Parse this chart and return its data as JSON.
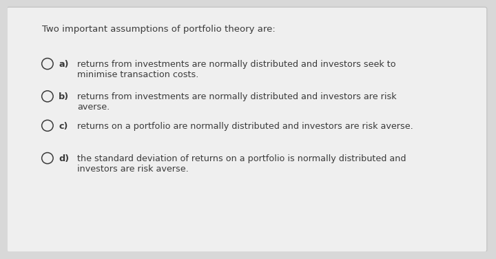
{
  "title": "Two important assumptions of portfolio theory are:",
  "bg_color": "#d8d8d8",
  "card_color": "#efefef",
  "text_color": "#3a3a3a",
  "label_color": "#3a3a3a",
  "title_fontsize": 9.5,
  "option_fontsize": 9.2,
  "options": [
    {
      "label": "a)",
      "lines": [
        "returns from investments are normally distributed and investors seek to",
        "minimise transaction costs."
      ]
    },
    {
      "label": "b)",
      "lines": [
        "returns from investments are normally distributed and investors are risk",
        "averse."
      ]
    },
    {
      "label": "c)",
      "lines": [
        "returns on a portfolio are normally distributed and investors are risk averse."
      ]
    },
    {
      "label": "d)",
      "lines": [
        "the standard deviation of returns on a portfolio is normally distributed and",
        "investors are risk averse."
      ]
    }
  ],
  "figsize": [
    7.2,
    3.76
  ],
  "dpi": 100
}
